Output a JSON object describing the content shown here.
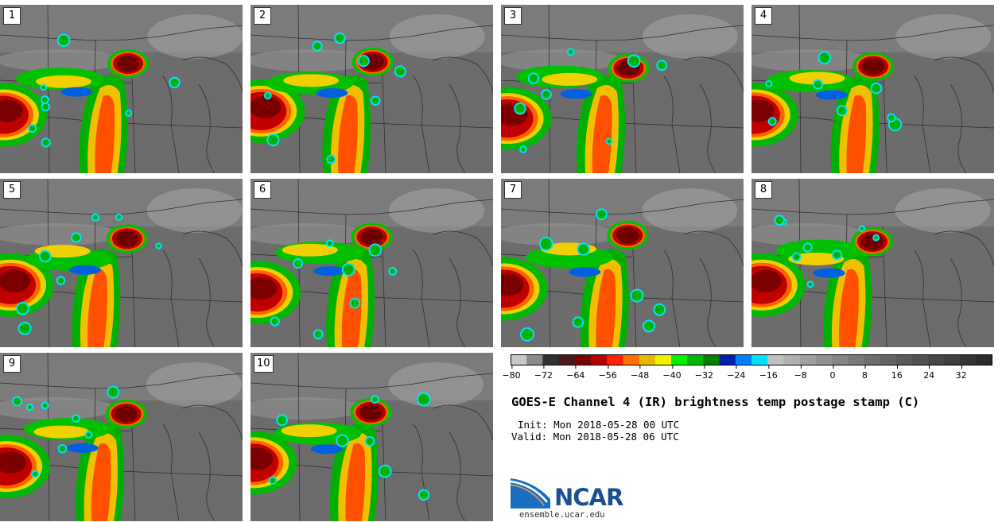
{
  "panels": [
    {
      "label": "1"
    },
    {
      "label": "2"
    },
    {
      "label": "3"
    },
    {
      "label": "4"
    },
    {
      "label": "5"
    },
    {
      "label": "6"
    },
    {
      "label": "7"
    },
    {
      "label": "8"
    },
    {
      "label": "9"
    },
    {
      "label": "10"
    }
  ],
  "colorbar": {
    "ticks": [
      "−80",
      "−72",
      "−64",
      "−56",
      "−48",
      "−40",
      "−32",
      "−24",
      "−16",
      "−8",
      "0",
      "8",
      "16",
      "24",
      "32"
    ],
    "min": -80,
    "max": 40,
    "step": 4,
    "colors": [
      "#c8c8c8",
      "#8a8a8a",
      "#303030",
      "#4a1a1a",
      "#7a0000",
      "#b80000",
      "#ff2000",
      "#ff7000",
      "#e8b800",
      "#f0f000",
      "#00f000",
      "#00b800",
      "#008000",
      "#0020b0",
      "#0080ff",
      "#00e0ff",
      "#c0c0c0",
      "#b0b0b0",
      "#a0a0a0",
      "#929292",
      "#868686",
      "#7a7a7a",
      "#6e6e6e",
      "#646464",
      "#5a5a5a",
      "#505050",
      "#474747",
      "#3e3e3e",
      "#353535",
      "#2c2c2c"
    ]
  },
  "title": "GOES-E Channel 4 (IR) brightness temp postage stamp (C)",
  "init_line": "Init: Mon 2018-05-28 00 UTC",
  "valid_line": "Valid: Mon 2018-05-28 06 UTC",
  "logo": {
    "name": "NCAR",
    "url": "ensemble.ucar.edu"
  }
}
